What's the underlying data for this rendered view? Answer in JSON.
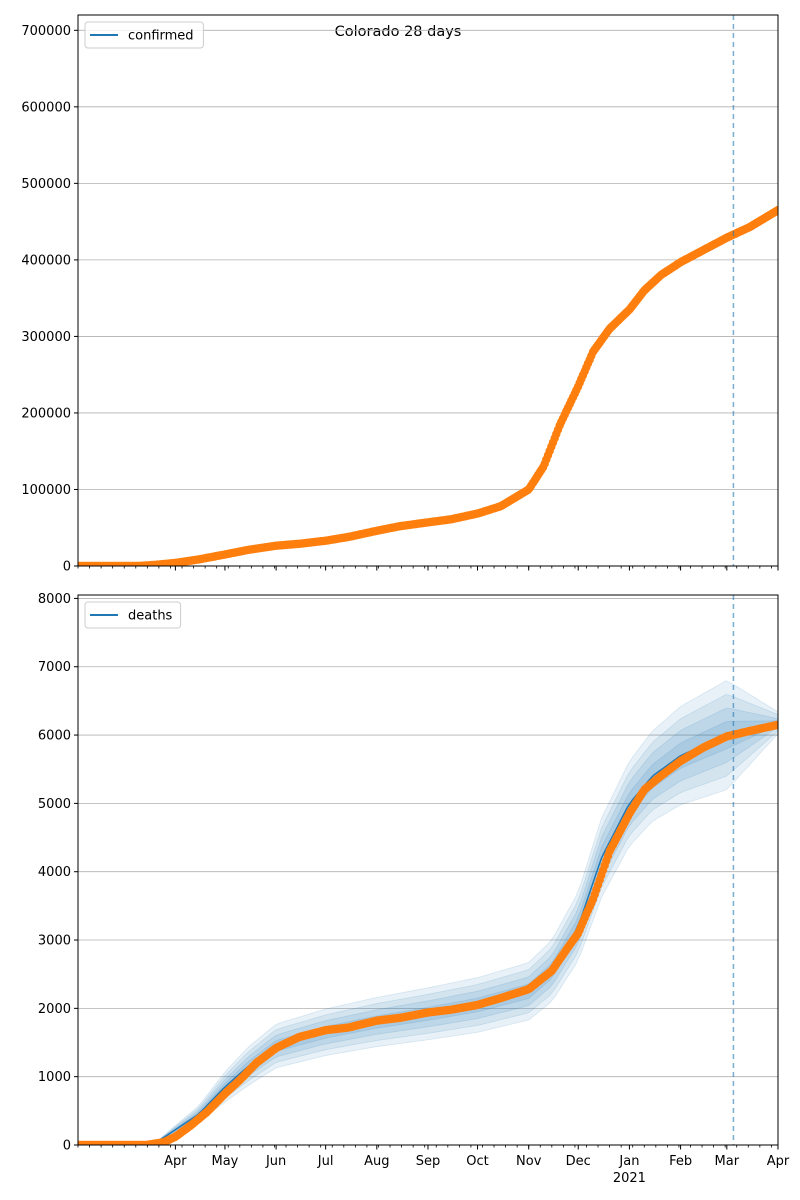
{
  "figure": {
    "title": "Colorado 28 days"
  },
  "chart_data": [
    {
      "type": "line",
      "title": "Colorado 28 days",
      "xlabel": "",
      "ylabel": "",
      "x_axis": {
        "range": [
          "2020-02-02",
          "2021-04-01"
        ],
        "month_ticks": [
          "2020-04-01",
          "2020-05-01",
          "2020-06-01",
          "2020-07-01",
          "2020-08-01",
          "2020-09-01",
          "2020-10-01",
          "2020-11-01",
          "2020-12-01",
          "2021-01-01",
          "2021-02-01",
          "2021-03-01",
          "2021-04-01"
        ],
        "tick_labels": [
          "Apr",
          "May",
          "Jun",
          "Jul",
          "Aug",
          "Sep",
          "Oct",
          "Nov",
          "Dec",
          "Jan",
          "Feb",
          "Mar",
          "Apr"
        ],
        "year_label": "2021",
        "tick_labels_visible": false
      },
      "ylim": [
        0,
        720000
      ],
      "yticks": [
        0,
        100000,
        200000,
        300000,
        400000,
        500000,
        600000,
        700000
      ],
      "ytick_labels": [
        "0",
        "100000",
        "200000",
        "300000",
        "400000",
        "500000",
        "600000",
        "700000"
      ],
      "grid": "horizontal",
      "legend": {
        "placement": "top-left",
        "entries": [
          {
            "label": "confirmed",
            "color": "#1f77b4"
          }
        ]
      },
      "vline": {
        "x": "2021-03-05",
        "style": "dashed"
      },
      "series": [
        {
          "name": "confirmed",
          "color": "#ff7f0e",
          "marker": "circle",
          "points": [
            [
              "2020-02-02",
              0
            ],
            [
              "2020-03-10",
              0
            ],
            [
              "2020-03-20",
              1500
            ],
            [
              "2020-04-01",
              4000
            ],
            [
              "2020-04-15",
              8500
            ],
            [
              "2020-05-01",
              15000
            ],
            [
              "2020-05-15",
              21000
            ],
            [
              "2020-06-01",
              26500
            ],
            [
              "2020-06-15",
              29000
            ],
            [
              "2020-07-01",
              33000
            ],
            [
              "2020-07-15",
              38000
            ],
            [
              "2020-08-01",
              46000
            ],
            [
              "2020-08-15",
              52000
            ],
            [
              "2020-09-01",
              57000
            ],
            [
              "2020-09-15",
              61000
            ],
            [
              "2020-10-01",
              68500
            ],
            [
              "2020-10-15",
              78000
            ],
            [
              "2020-11-01",
              100000
            ],
            [
              "2020-11-10",
              130000
            ],
            [
              "2020-11-20",
              185000
            ],
            [
              "2020-12-01",
              235000
            ],
            [
              "2020-12-10",
              280000
            ],
            [
              "2020-12-20",
              310000
            ],
            [
              "2021-01-01",
              335000
            ],
            [
              "2021-01-10",
              360000
            ],
            [
              "2021-01-20",
              380000
            ],
            [
              "2021-02-01",
              397000
            ],
            [
              "2021-02-15",
              413000
            ],
            [
              "2021-03-01",
              429000
            ],
            [
              "2021-03-15",
              443000
            ],
            [
              "2021-04-01",
              465000
            ]
          ]
        }
      ]
    },
    {
      "type": "line",
      "title": "",
      "xlabel": "",
      "ylabel": "",
      "x_axis": {
        "range": [
          "2020-02-02",
          "2021-04-01"
        ],
        "month_ticks": [
          "2020-04-01",
          "2020-05-01",
          "2020-06-01",
          "2020-07-01",
          "2020-08-01",
          "2020-09-01",
          "2020-10-01",
          "2020-11-01",
          "2020-12-01",
          "2021-01-01",
          "2021-02-01",
          "2021-03-01",
          "2021-04-01"
        ],
        "tick_labels": [
          "Apr",
          "May",
          "Jun",
          "Jul",
          "Aug",
          "Sep",
          "Oct",
          "Nov",
          "Dec",
          "Jan",
          "Feb",
          "Mar",
          "Apr"
        ],
        "year_label": "2021",
        "tick_labels_visible": true
      },
      "ylim": [
        0,
        8050
      ],
      "yticks": [
        0,
        1000,
        2000,
        3000,
        4000,
        5000,
        6000,
        7000,
        8000
      ],
      "ytick_labels": [
        "0",
        "1000",
        "2000",
        "3000",
        "4000",
        "5000",
        "6000",
        "7000",
        "8000"
      ],
      "grid": "horizontal",
      "legend": {
        "placement": "top-left",
        "entries": [
          {
            "label": "deaths",
            "color": "#1f77b4"
          }
        ]
      },
      "vline": {
        "x": "2021-03-05",
        "style": "dashed"
      },
      "bands": {
        "color": "#1f77b4",
        "x": [
          "2020-03-20",
          "2020-04-15",
          "2020-05-01",
          "2020-05-15",
          "2020-06-01",
          "2020-07-01",
          "2020-08-01",
          "2020-09-01",
          "2020-10-01",
          "2020-11-01",
          "2020-11-15",
          "2020-12-01",
          "2020-12-15",
          "2021-01-01",
          "2021-01-15",
          "2021-02-01",
          "2021-03-01",
          "2021-04-01"
        ],
        "center": [
          30,
          450,
          850,
          1150,
          1450,
          1650,
          1800,
          1920,
          2050,
          2250,
          2550,
          3200,
          4200,
          5000,
          5400,
          5700,
          6000,
          6180
        ],
        "spread_inner": [
          5,
          60,
          110,
          140,
          160,
          170,
          180,
          190,
          200,
          210,
          220,
          250,
          300,
          320,
          340,
          370,
          400,
          60
        ],
        "spread_outer": [
          10,
          120,
          220,
          280,
          320,
          340,
          360,
          380,
          400,
          420,
          450,
          500,
          580,
          620,
          660,
          720,
          800,
          160
        ],
        "band_end": "2021-04-01"
      },
      "series": [
        {
          "name": "deaths",
          "color": "#ff7f0e",
          "marker": "circle",
          "points": [
            [
              "2020-02-02",
              0
            ],
            [
              "2020-03-14",
              0
            ],
            [
              "2020-03-25",
              40
            ],
            [
              "2020-04-01",
              120
            ],
            [
              "2020-04-10",
              280
            ],
            [
              "2020-04-20",
              480
            ],
            [
              "2020-05-01",
              750
            ],
            [
              "2020-05-10",
              950
            ],
            [
              "2020-05-20",
              1200
            ],
            [
              "2020-06-01",
              1420
            ],
            [
              "2020-06-15",
              1580
            ],
            [
              "2020-07-01",
              1680
            ],
            [
              "2020-07-15",
              1720
            ],
            [
              "2020-08-01",
              1820
            ],
            [
              "2020-08-15",
              1860
            ],
            [
              "2020-09-01",
              1940
            ],
            [
              "2020-09-15",
              1980
            ],
            [
              "2020-10-01",
              2050
            ],
            [
              "2020-10-15",
              2150
            ],
            [
              "2020-11-01",
              2280
            ],
            [
              "2020-11-15",
              2550
            ],
            [
              "2020-11-25",
              2900
            ],
            [
              "2020-12-01",
              3100
            ],
            [
              "2020-12-05",
              3330
            ],
            [
              "2020-12-10",
              3600
            ],
            [
              "2020-12-20",
              4300
            ],
            [
              "2021-01-01",
              4850
            ],
            [
              "2021-01-10",
              5200
            ],
            [
              "2021-01-20",
              5400
            ],
            [
              "2021-02-01",
              5620
            ],
            [
              "2021-02-15",
              5820
            ],
            [
              "2021-03-01",
              5980
            ],
            [
              "2021-03-15",
              6060
            ],
            [
              "2021-04-01",
              6150
            ]
          ]
        }
      ]
    }
  ]
}
